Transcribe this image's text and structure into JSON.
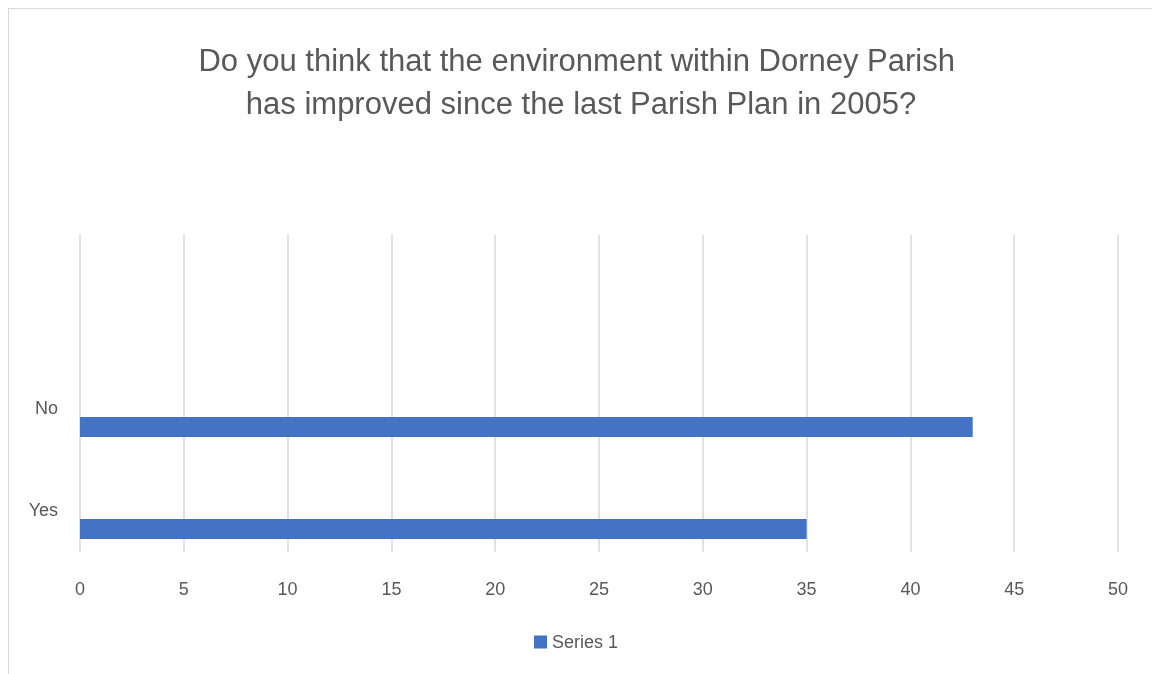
{
  "chart_data": {
    "type": "bar",
    "orientation": "horizontal",
    "title": "Do you think that the environment within Dorney Parish has improved since the last Parish Plan in 2005?",
    "categories": [
      "No",
      "Yes"
    ],
    "series": [
      {
        "name": "Series 1",
        "color": "#4472c4",
        "values": [
          43,
          35
        ]
      }
    ],
    "xlim": [
      0,
      50
    ],
    "xticks": [
      0,
      5,
      10,
      15,
      20,
      25,
      30,
      35,
      40,
      45,
      50
    ],
    "grid": "x",
    "legend": "bottom"
  }
}
